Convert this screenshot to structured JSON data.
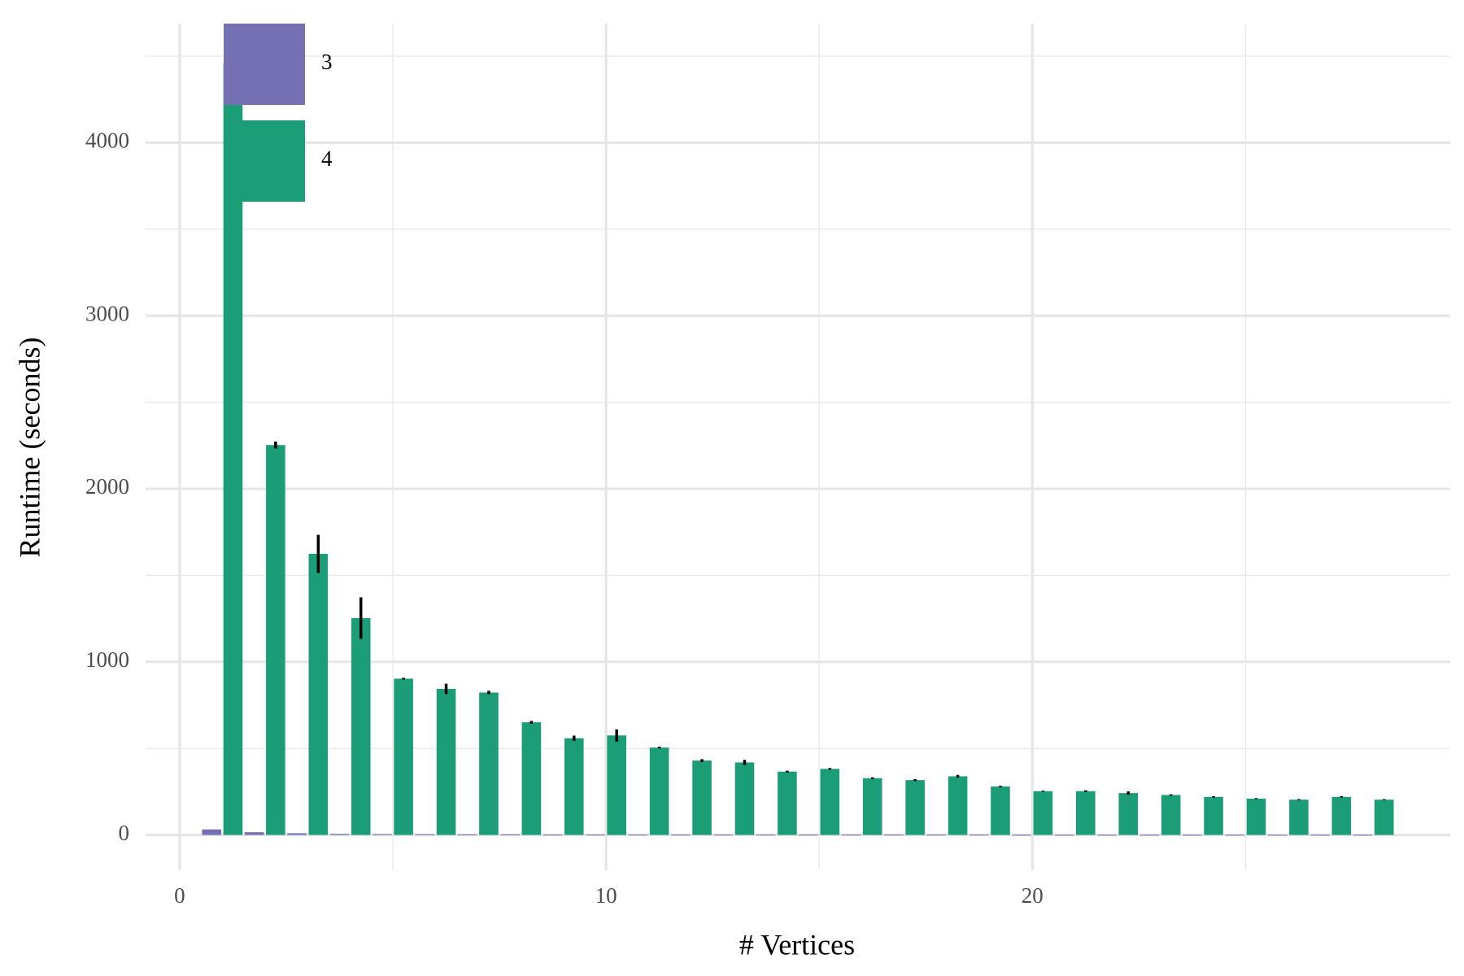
{
  "chart_data": {
    "type": "bar",
    "x_label": "# Vertices",
    "y_label": "Runtime (seconds)",
    "x": [
      1,
      2,
      3,
      4,
      5,
      6,
      7,
      8,
      9,
      10,
      11,
      12,
      13,
      14,
      15,
      16,
      17,
      18,
      19,
      20,
      21,
      22,
      23,
      24,
      25,
      26,
      27,
      28
    ],
    "series": [
      {
        "name": "3",
        "color": "#7570b3",
        "values": [
          32,
          16,
          10,
          6,
          5,
          4,
          3,
          3,
          2,
          2,
          2,
          2,
          2,
          2,
          2,
          2,
          2,
          2,
          2,
          1,
          1,
          1,
          1,
          1,
          1,
          1,
          1,
          1
        ]
      },
      {
        "name": "4",
        "color": "#1b9e77",
        "values": [
          4460,
          2253,
          1624,
          1253,
          903,
          844,
          823,
          651,
          559,
          575,
          505,
          430,
          419,
          366,
          382,
          328,
          317,
          339,
          280,
          253,
          253,
          242,
          231,
          220,
          210,
          204,
          220,
          204
        ],
        "errors": [
          null,
          20,
          110,
          120,
          5,
          30,
          10,
          8,
          15,
          35,
          5,
          8,
          15,
          5,
          5,
          5,
          6,
          8,
          4,
          3,
          5,
          10,
          4,
          4,
          3,
          3,
          4,
          3
        ]
      }
    ],
    "xlim": [
      -0.8,
      29.8
    ],
    "ylim": [
      -204,
      4688
    ],
    "xticks": [
      0,
      10,
      20
    ],
    "yticks": [
      0,
      1000,
      2000,
      3000,
      4000
    ],
    "x_minor_ticks": [
      5,
      15,
      25
    ],
    "y_minor_ticks": [
      500,
      1500,
      2500,
      3500,
      4500
    ],
    "grid": true,
    "legend": "top-left"
  }
}
